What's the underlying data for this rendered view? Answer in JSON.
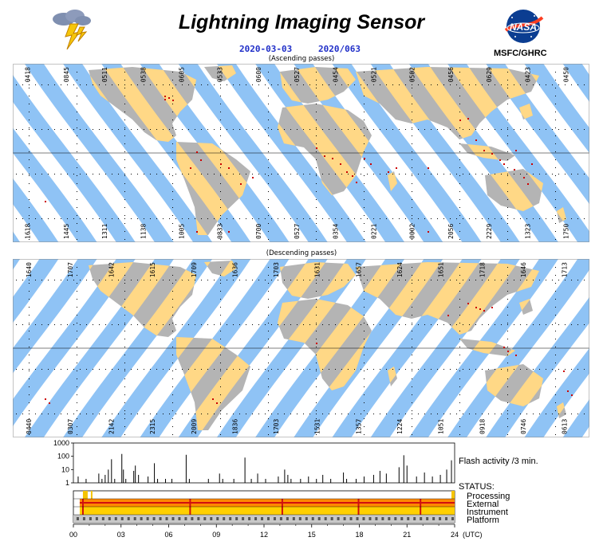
{
  "header": {
    "title": "Lightning Imaging Sensor",
    "date": "2020-03-03",
    "doy": "2020/063",
    "org": "MSFC/GHRC",
    "nasa_logo_text": "NASA"
  },
  "colors": {
    "ocean_swath": "#8fc3f5",
    "land_swath": "#ffd886",
    "land": "#b4b4b4",
    "flash": "#cc0000",
    "title_blue": "#1f2ec8"
  },
  "ascending": {
    "caption": "(Ascending passes)",
    "top_times": [
      "0418",
      "0845",
      "0511",
      "0538",
      "0605",
      "0533",
      "0600",
      "0527",
      "0454",
      "0521",
      "0502",
      "0456",
      "0629",
      "0423",
      "0450"
    ],
    "bottom_times": [
      "1618",
      "1445",
      "1311",
      "1138",
      "1005",
      "0833",
      "0700",
      "0527",
      "0354",
      "0221",
      "0002",
      "2056",
      "2229",
      "1323",
      "1750"
    ]
  },
  "descending": {
    "caption": "(Descending passes)",
    "top_times": [
      "1640",
      "1707",
      "1642",
      "1615",
      "1709",
      "1636",
      "1703",
      "1631",
      "1657",
      "1624",
      "1651",
      "1718",
      "1646",
      "1713"
    ],
    "bottom_times": [
      "0440",
      "0307",
      "2142",
      "2315",
      "2009",
      "1836",
      "1703",
      "1531",
      "1357",
      "1224",
      "1051",
      "0918",
      "0746",
      "0613"
    ]
  },
  "chart_data": {
    "type": "bar",
    "title": "Flash activity /3 min.",
    "yscale": "log",
    "yticks": [
      "1000",
      "100",
      "10",
      "1"
    ],
    "ylim": [
      1,
      1000
    ],
    "x_unit": "(UTC)",
    "xticks": [
      "00",
      "03",
      "06",
      "09",
      "12",
      "15",
      "18",
      "21",
      "24"
    ],
    "xlim": [
      0,
      24
    ],
    "bars": [
      {
        "x": 0.3,
        "y": 3
      },
      {
        "x": 0.8,
        "y": 2
      },
      {
        "x": 1.6,
        "y": 5
      },
      {
        "x": 1.8,
        "y": 2
      },
      {
        "x": 2.0,
        "y": 4
      },
      {
        "x": 2.2,
        "y": 10
      },
      {
        "x": 2.4,
        "y": 60
      },
      {
        "x": 2.6,
        "y": 2
      },
      {
        "x": 3.05,
        "y": 150
      },
      {
        "x": 3.15,
        "y": 10
      },
      {
        "x": 3.3,
        "y": 2
      },
      {
        "x": 3.8,
        "y": 8
      },
      {
        "x": 3.9,
        "y": 20
      },
      {
        "x": 4.1,
        "y": 4
      },
      {
        "x": 4.7,
        "y": 3
      },
      {
        "x": 5.1,
        "y": 30
      },
      {
        "x": 5.3,
        "y": 2
      },
      {
        "x": 5.8,
        "y": 2
      },
      {
        "x": 6.2,
        "y": 2
      },
      {
        "x": 7.1,
        "y": 130
      },
      {
        "x": 7.3,
        "y": 2
      },
      {
        "x": 8.5,
        "y": 2
      },
      {
        "x": 9.2,
        "y": 5
      },
      {
        "x": 9.4,
        "y": 2
      },
      {
        "x": 10.1,
        "y": 2
      },
      {
        "x": 10.8,
        "y": 80
      },
      {
        "x": 11.2,
        "y": 2
      },
      {
        "x": 11.6,
        "y": 5
      },
      {
        "x": 12.1,
        "y": 2
      },
      {
        "x": 12.9,
        "y": 3
      },
      {
        "x": 13.3,
        "y": 10
      },
      {
        "x": 13.5,
        "y": 4
      },
      {
        "x": 13.7,
        "y": 2
      },
      {
        "x": 14.3,
        "y": 2
      },
      {
        "x": 14.8,
        "y": 3
      },
      {
        "x": 15.3,
        "y": 2
      },
      {
        "x": 15.7,
        "y": 4
      },
      {
        "x": 16.2,
        "y": 2
      },
      {
        "x": 17.0,
        "y": 6
      },
      {
        "x": 17.2,
        "y": 2
      },
      {
        "x": 17.8,
        "y": 2
      },
      {
        "x": 18.3,
        "y": 3
      },
      {
        "x": 18.9,
        "y": 4
      },
      {
        "x": 19.3,
        "y": 8
      },
      {
        "x": 19.7,
        "y": 5
      },
      {
        "x": 20.5,
        "y": 15
      },
      {
        "x": 20.8,
        "y": 120
      },
      {
        "x": 21.0,
        "y": 20
      },
      {
        "x": 21.6,
        "y": 3
      },
      {
        "x": 22.1,
        "y": 6
      },
      {
        "x": 22.6,
        "y": 3
      },
      {
        "x": 23.1,
        "y": 4
      },
      {
        "x": 23.5,
        "y": 10
      },
      {
        "x": 23.8,
        "y": 50
      }
    ],
    "status": {
      "label": "STATUS:",
      "rows": [
        "Processing",
        "External",
        "Instrument",
        "Platform"
      ]
    }
  }
}
